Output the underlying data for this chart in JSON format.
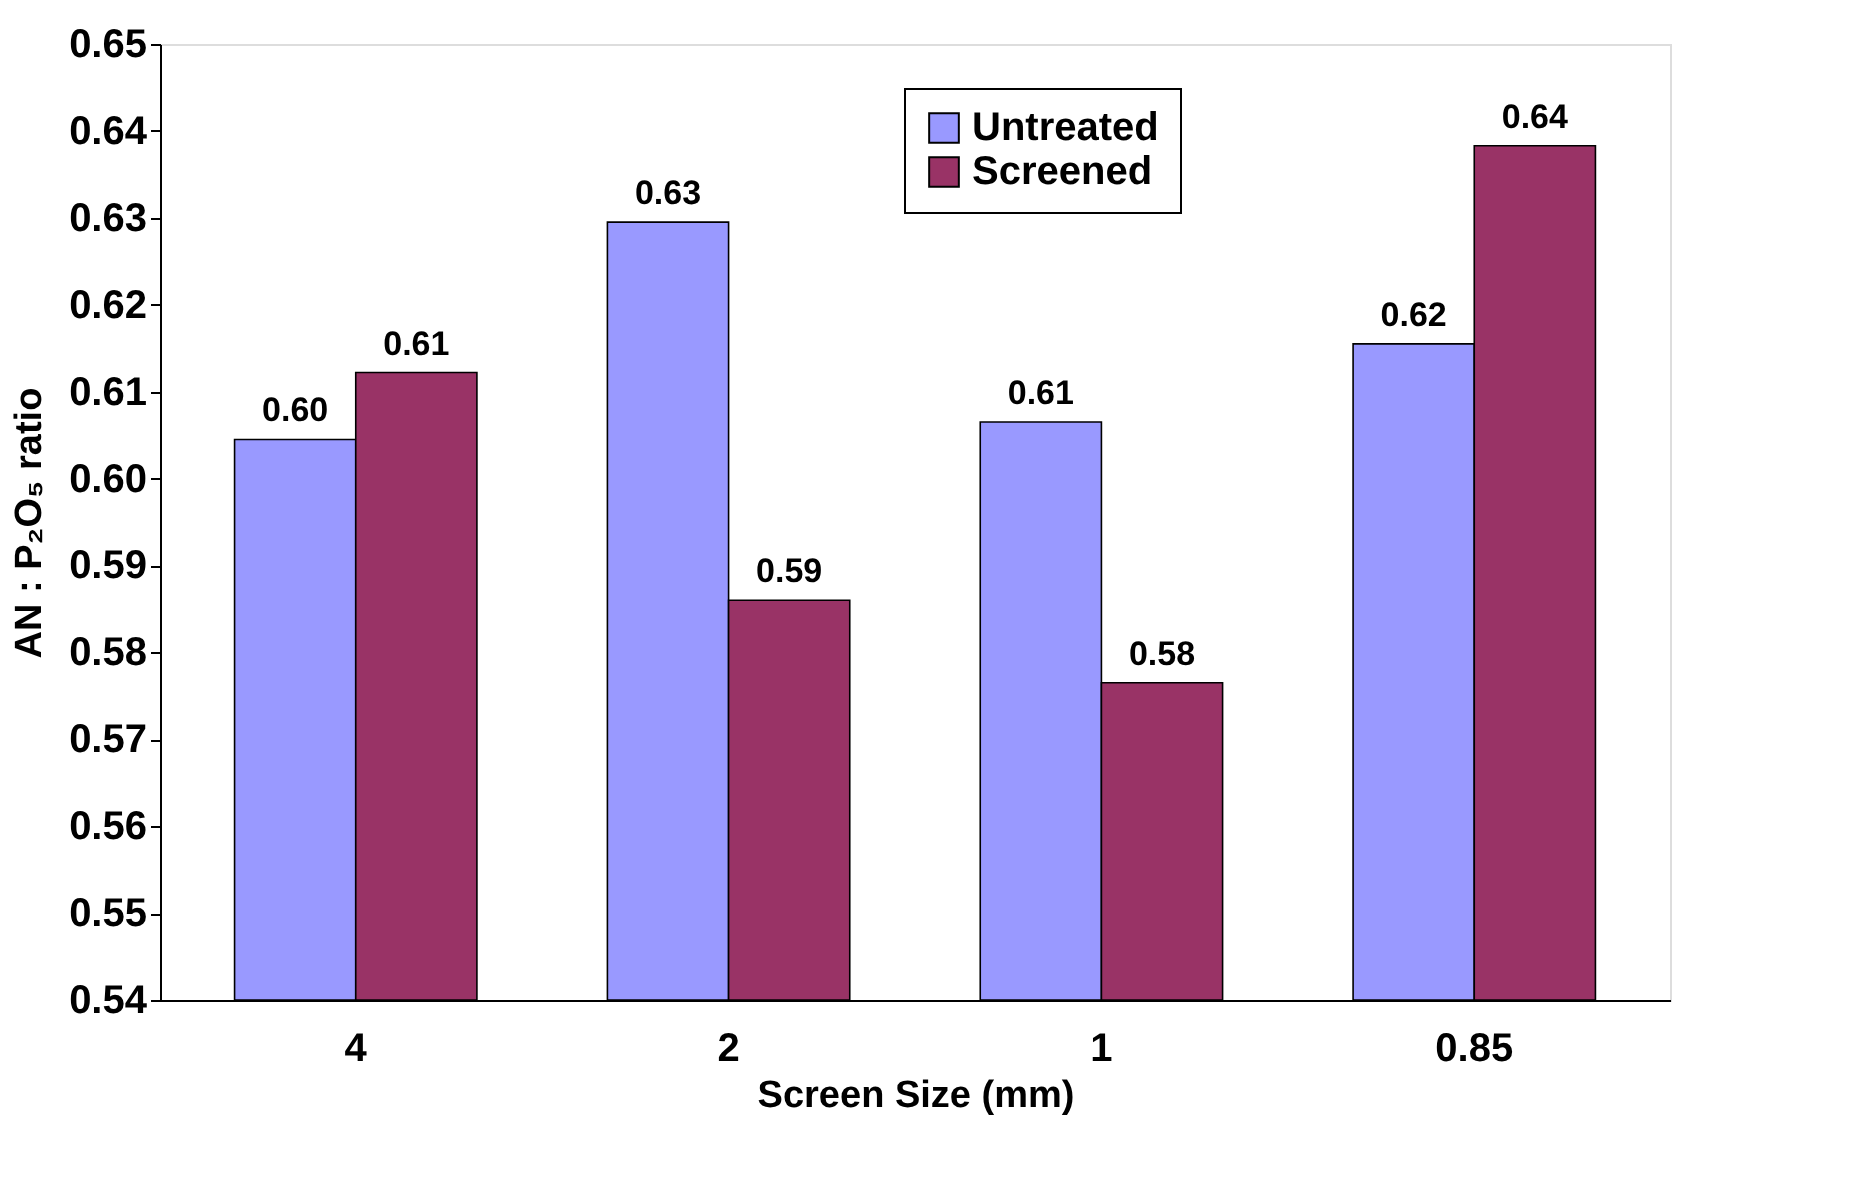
{
  "chart_data": {
    "type": "bar",
    "xlabel": "Screen Size (mm)",
    "ylabel": "AN : P₂O₅ ratio",
    "categories": [
      "4",
      "2",
      "1",
      "0.85"
    ],
    "series": [
      {
        "name": "Untreated",
        "color": "#9999ff",
        "values": [
          0.6045,
          0.6295,
          0.6065,
          0.6155
        ],
        "value_labels": [
          "0.60",
          "0.63",
          "0.61",
          "0.62"
        ]
      },
      {
        "name": "Screened",
        "color": "#993366",
        "values": [
          0.6122,
          0.586,
          0.5765,
          0.6383
        ],
        "value_labels": [
          "0.61",
          "0.59",
          "0.58",
          "0.64"
        ]
      }
    ],
    "ylim": [
      0.54,
      0.65
    ],
    "yticks": [
      0.54,
      0.55,
      0.56,
      0.57,
      0.58,
      0.59,
      {
        "value": 0.6,
        "label": "0.60"
      },
      0.61,
      0.62,
      0.63,
      0.64,
      0.65
    ],
    "grid": false,
    "legend": "top right"
  }
}
